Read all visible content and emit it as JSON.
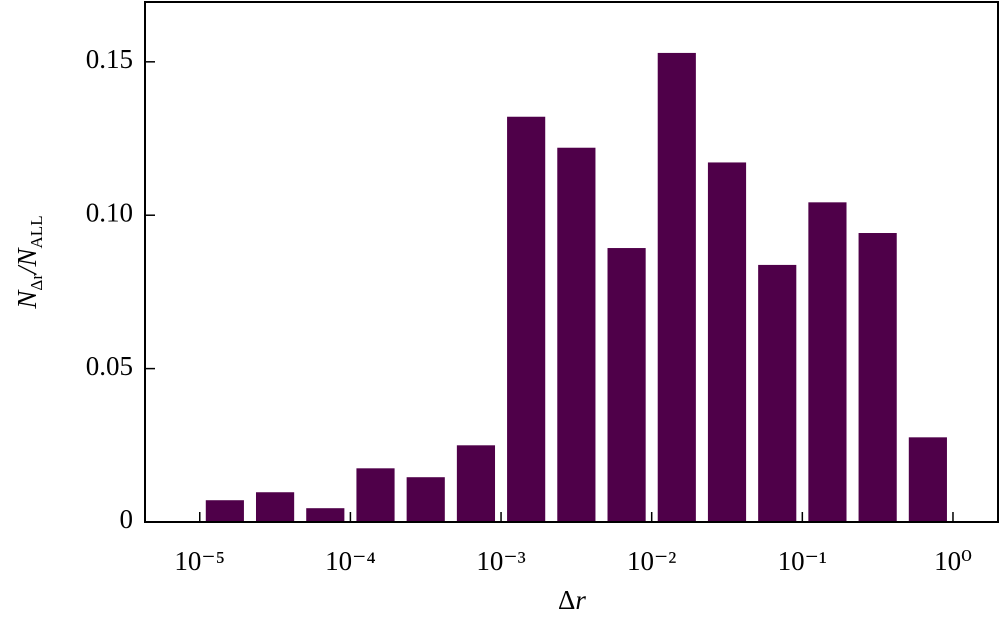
{
  "chart_data": {
    "type": "histogram",
    "xlabel": [
      "Δ",
      "r"
    ],
    "ylabel": [
      "N",
      "Δr",
      "/N",
      "ALL"
    ],
    "bins": [
      1e-05,
      2.154e-05,
      4.642e-05,
      0.0001,
      0.0002154,
      0.0004642,
      0.001,
      0.002154,
      0.004642,
      0.01,
      0.02154,
      0.04642,
      0.1,
      0.2154,
      0.4642,
      1
    ],
    "values": [
      0.0071,
      0.0097,
      0.0045,
      0.0175,
      0.0146,
      0.025,
      0.1321,
      0.122,
      0.0893,
      0.1529,
      0.1172,
      0.0838,
      0.1042,
      0.0942,
      0.0276
    ],
    "color": "#4f0049",
    "xscale": "log",
    "xlim": [
      4.33e-06,
      1.99
    ],
    "xticks": [
      {
        "value": 1e-05,
        "label": "10⁻⁵"
      },
      {
        "value": 0.0001,
        "label": "10⁻⁴"
      },
      {
        "value": 0.001,
        "label": "10⁻³"
      },
      {
        "value": 0.01,
        "label": "10⁻²"
      },
      {
        "value": 0.1,
        "label": "10⁻¹"
      },
      {
        "value": 1,
        "label": "10⁰"
      }
    ],
    "ylim": [
      0,
      0.1695
    ],
    "yticks": [
      0,
      0.05,
      {
        "value": 0.1,
        "label": "0.10"
      },
      0.15
    ]
  }
}
